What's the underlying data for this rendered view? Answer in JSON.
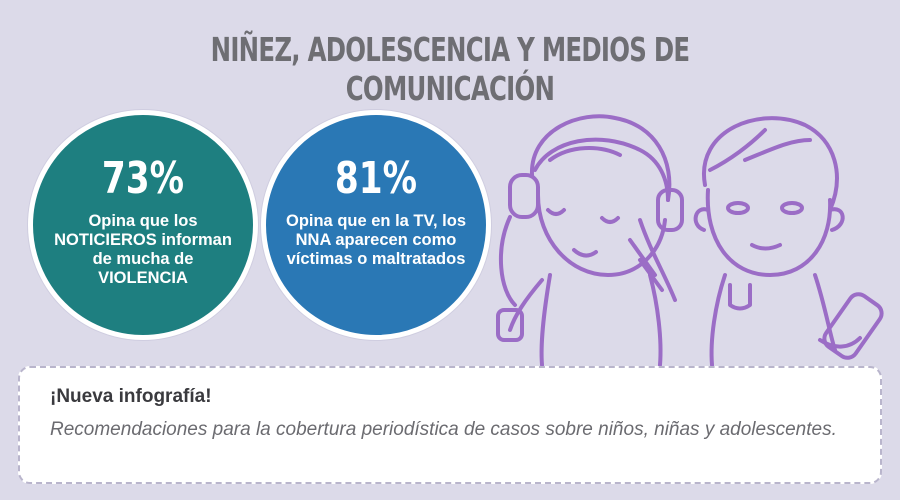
{
  "title": "NIÑEZ, ADOLESCENCIA Y MEDIOS DE COMUNICACIÓN",
  "stats": [
    {
      "percent": "73%",
      "text": "Opina que los NOTICIEROS informan de mucha de VIOLENCIA",
      "color": "#1e7f80"
    },
    {
      "percent": "81%",
      "text": "Opina que en la TV, los NNA aparecen como víctimas o maltratados",
      "color": "#2a78b5"
    }
  ],
  "notice": {
    "heading": "¡Nueva infografía!",
    "body": "Recomendaciones para la cobertura periodística de casos sobre niños, niñas y adolescentes."
  },
  "colors": {
    "background": "#dcdae9",
    "illustration_line": "#9b6dc6"
  },
  "illustration": {
    "icons": [
      "girl-with-headphones-icon",
      "boy-with-remote-icon"
    ]
  }
}
